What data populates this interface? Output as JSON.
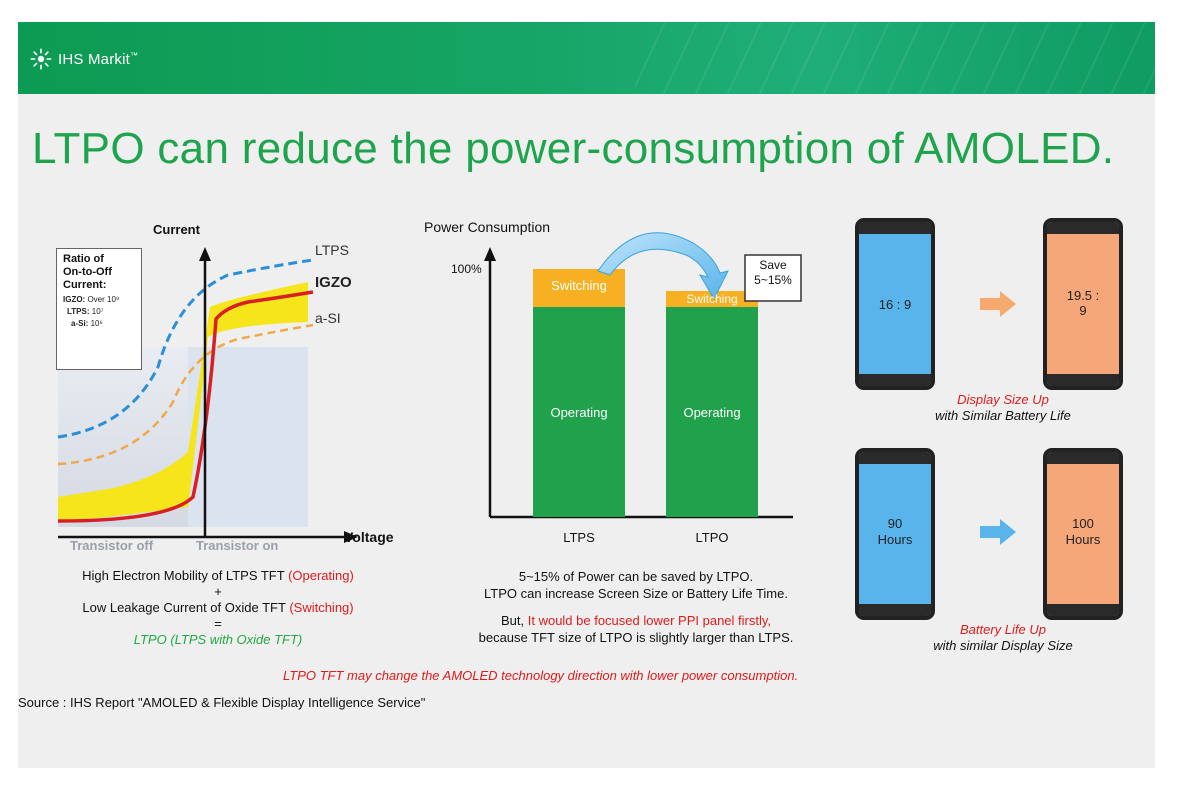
{
  "header": {
    "brand": "IHS Markit",
    "brand_suffix": "™",
    "colors": {
      "banner": "#14a160",
      "title": "#1fa44e",
      "red": "#e01b1b",
      "green": "#22a845"
    }
  },
  "title": "LTPO can reduce the power-consumption of AMOLED.",
  "left": {
    "y_axis": "Current",
    "x_axis": "Voltage",
    "curves": [
      "LTPS",
      "IGZO",
      "a-SI"
    ],
    "ratio_box": {
      "title_lines": [
        "Ratio of",
        "On-to-Off",
        "Current:"
      ],
      "rows": [
        {
          "label": "IGZO:",
          "value": "Over 10⁹"
        },
        {
          "label": "LTPS:",
          "value": "10⁷"
        },
        {
          "label": "a-Si:",
          "value": "10⁶"
        }
      ]
    },
    "region_off": "Transistor off",
    "region_on": "Transistor on",
    "caption": {
      "line1": "High Electron Mobility of LTPS TFT",
      "line1_red": "(Operating)",
      "plus": "+",
      "line2": "Low Leakage Current of Oxide TFT",
      "line2_red": "(Switching)",
      "eq": "=",
      "line3": "LTPO (LTPS with Oxide TFT)"
    }
  },
  "middle": {
    "y_axis": "Power Consumption",
    "y_mark": "100%",
    "callout": [
      "Save",
      "5~15%"
    ],
    "bars": [
      {
        "name": "LTPS",
        "top": "Switching",
        "bottom": "Operating"
      },
      {
        "name": "LTPO",
        "top": "Switching",
        "bottom": "Operating"
      }
    ],
    "caption": {
      "line1": "5~15% of Power can be saved by LTPO.",
      "line2": "LTPO can increase Screen Size or Battery Life Time.",
      "line3_pre": "But,",
      "line3_red": "It would be focused lower PPI panel firstly,",
      "line4": "because TFT size of LTPO is slightly larger than LTPS."
    }
  },
  "right": {
    "top": {
      "from": "16 : 9",
      "to": [
        "19.5 :",
        "9"
      ],
      "caption_red": "Display Size Up",
      "caption": "with Similar Battery Life"
    },
    "bottom": {
      "from": [
        "90",
        "Hours"
      ],
      "to": [
        "100",
        "Hours"
      ],
      "caption_red": "Battery Life Up",
      "caption": "with similar Display Size"
    }
  },
  "conclusion": "LTPO TFT may change the AMOLED technology direction with lower power consumption.",
  "source": "Source : IHS Report \"AMOLED & Flexible Display Intelligence Service\""
}
